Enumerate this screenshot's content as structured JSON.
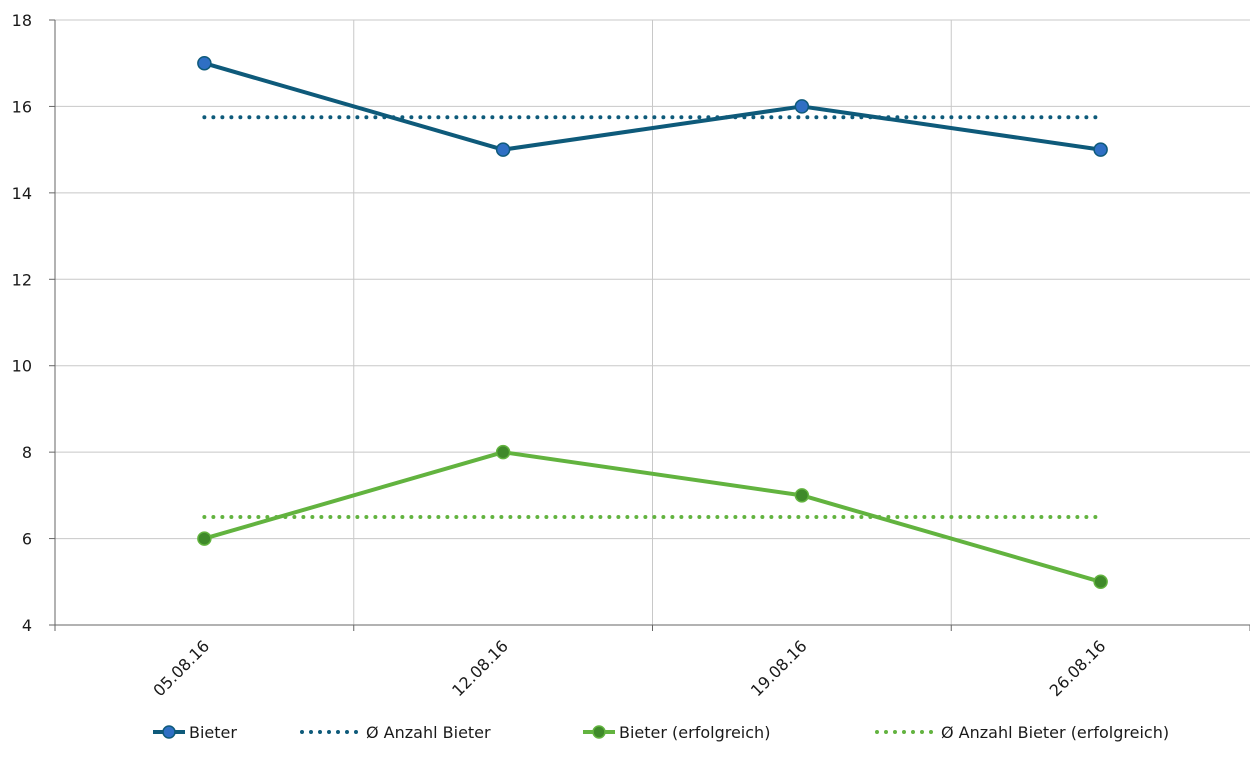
{
  "chart_data": {
    "type": "line",
    "title": "",
    "xlabel": "",
    "ylabel": "",
    "categories": [
      "05.08.16",
      "12.08.16",
      "19.08.16",
      "26.08.16"
    ],
    "ylim": [
      4,
      18
    ],
    "yticks": [
      4,
      6,
      8,
      10,
      12,
      14,
      16,
      18
    ],
    "grid": true,
    "legend_position": "bottom",
    "series": [
      {
        "name": "Bieter",
        "values": [
          17,
          15,
          16,
          15
        ],
        "color": "#0e5a7a",
        "marker_color": "#2f6fc4",
        "style": "solid",
        "marker": true
      },
      {
        "name": "Ø Anzahl Bieter",
        "values": [
          15.75,
          15.75,
          15.75,
          15.75
        ],
        "color": "#0e5a7a",
        "style": "dotted",
        "marker": false
      },
      {
        "name": "Bieter (erfolgreich)",
        "values": [
          6,
          8,
          7,
          5
        ],
        "color": "#62b33f",
        "marker_color": "#3f8a2a",
        "style": "solid",
        "marker": true
      },
      {
        "name": "Ø Anzahl Bieter (erfolgreich)",
        "values": [
          6.5,
          6.5,
          6.5,
          6.5
        ],
        "color": "#62b33f",
        "style": "dotted",
        "marker": false
      }
    ]
  }
}
